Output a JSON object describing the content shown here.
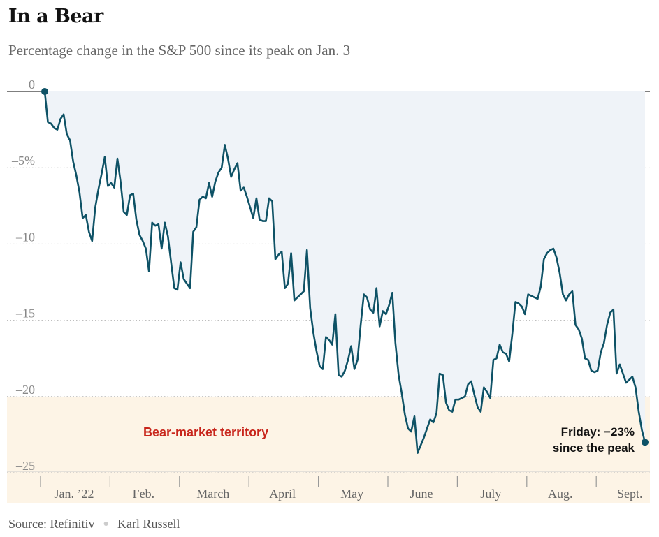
{
  "title": "In a Bear",
  "subtitle": "Percentage change in the S&P 500 since its peak on Jan. 3",
  "source": {
    "label": "Source: Refinitiv",
    "author": "Karl Russell"
  },
  "colors": {
    "line": "#0e5266",
    "area_fill": "#eff3f8",
    "bear_zone_fill": "#fdf4e6",
    "bear_label": "#c8251b"
  },
  "chart_data": {
    "type": "area",
    "xlabel": "",
    "ylabel": "",
    "ylim": [
      -25.5,
      0.5
    ],
    "y_ticks": [
      {
        "value": 0,
        "label": "0"
      },
      {
        "value": -5,
        "label": "–5%"
      },
      {
        "value": -10,
        "label": "–10"
      },
      {
        "value": -15,
        "label": "–15"
      },
      {
        "value": -20,
        "label": "–20"
      },
      {
        "value": -25,
        "label": "–25"
      }
    ],
    "x_ticks": [
      "Jan. ’22",
      "Feb.",
      "March",
      "April",
      "May",
      "June",
      "July",
      "Aug.",
      "Sept."
    ],
    "bear_threshold": -20,
    "bear_zone_label": "Bear-market territory",
    "callout": {
      "line1": "Friday: −23%",
      "line2": "since the peak"
    },
    "series": [
      {
        "values": [
          0,
          -2,
          -2.1,
          -2.4,
          -2.5,
          -1.8,
          -1.5,
          -2.8,
          -3.2,
          -4.6,
          -5.5,
          -6.6,
          -8.3,
          -8.1,
          -9.2,
          -9.8,
          -7.6,
          -6.4,
          -5.4,
          -4.3,
          -6.2,
          -6,
          -6.3,
          -4.4,
          -5.9,
          -7.9,
          -8.1,
          -6.8,
          -6.7,
          -8.4,
          -9.4,
          -9.8,
          -10.3,
          -11.8,
          -8.6,
          -8.8,
          -8.7,
          -10.3,
          -8.6,
          -9.5,
          -11.2,
          -12.9,
          -13,
          -11.2,
          -12.3,
          -12.6,
          -12.9,
          -9.2,
          -8.9,
          -7.1,
          -6.9,
          -7,
          -6,
          -6.9,
          -5.9,
          -5.3,
          -5,
          -3.5,
          -4.4,
          -5.6,
          -5.1,
          -4.7,
          -6.5,
          -6.3,
          -6.9,
          -7.6,
          -8.3,
          -7,
          -8.4,
          -8.5,
          -8.5,
          -7,
          -7.2,
          -11,
          -10.7,
          -10.5,
          -12.9,
          -12.6,
          -10.6,
          -13.7,
          -13.5,
          -13.3,
          -13.1,
          -10.4,
          -14.2,
          -15.8,
          -17,
          -18,
          -18.2,
          -16.1,
          -16.3,
          -16.6,
          -14.6,
          -18.6,
          -18.7,
          -18.3,
          -17.6,
          -16.7,
          -18.2,
          -17.6,
          -15.3,
          -13.3,
          -13.5,
          -14.3,
          -14.5,
          -12.9,
          -15.4,
          -14.4,
          -14.6,
          -14,
          -13.2,
          -16.5,
          -18.6,
          -19.8,
          -21.2,
          -22.1,
          -22.3,
          -21.3,
          -23.7,
          -23.2,
          -22.7,
          -22.1,
          -21.5,
          -21.7,
          -21.1,
          -18.5,
          -18.6,
          -20.4,
          -20.9,
          -21,
          -20.2,
          -20.2,
          -20.1,
          -20,
          -19.2,
          -19,
          -19.9,
          -20.7,
          -21,
          -19.4,
          -19.7,
          -20.1,
          -17.6,
          -17.5,
          -16.6,
          -17.1,
          -17.2,
          -17.7,
          -15.9,
          -13.8,
          -13.9,
          -14.1,
          -14.6,
          -13.3,
          -13.4,
          -13.5,
          -13.6,
          -12.8,
          -11,
          -10.6,
          -10.4,
          -10.3,
          -10.9,
          -11.9,
          -13.3,
          -13.7,
          -13.3,
          -13.1,
          -15.3,
          -15.6,
          -16.2,
          -17.5,
          -17.6,
          -18.3,
          -18.4,
          -18.3,
          -17.1,
          -16.5,
          -15.3,
          -14.5,
          -14.3,
          -18.5,
          -17.9,
          -18.5,
          -19.1,
          -18.9,
          -18.7,
          -19.4,
          -21,
          -22.2,
          -23
        ]
      }
    ]
  }
}
